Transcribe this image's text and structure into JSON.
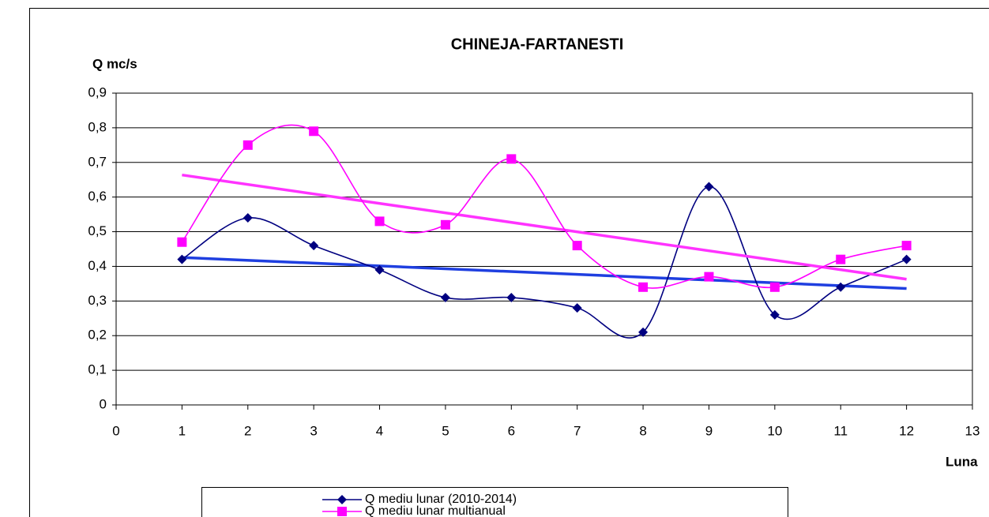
{
  "chart_data": {
    "type": "line",
    "title": "CHINEJA-FARTANESTI",
    "y_label": "Q mc/s",
    "x_label": "Luna",
    "x": [
      1,
      2,
      3,
      4,
      5,
      6,
      7,
      8,
      9,
      10,
      11,
      12
    ],
    "series": [
      {
        "name": "Q mediu lunar (2010-2014)",
        "color": "#000080",
        "trend_color": "#1f3fe0",
        "marker": "diamond",
        "values": [
          0.42,
          0.54,
          0.46,
          0.39,
          0.31,
          0.31,
          0.28,
          0.21,
          0.63,
          0.26,
          0.34,
          0.42
        ]
      },
      {
        "name": "Q mediu lunar multianual",
        "color": "#ff00ff",
        "trend_color": "#ff33ff",
        "marker": "square",
        "values": [
          0.47,
          0.75,
          0.79,
          0.53,
          0.52,
          0.71,
          0.46,
          0.34,
          0.37,
          0.34,
          0.42,
          0.46
        ]
      }
    ],
    "smooth": true,
    "trendline": true,
    "xlim": [
      0,
      13
    ],
    "xticks": [
      0,
      1,
      2,
      3,
      4,
      5,
      6,
      7,
      8,
      9,
      10,
      11,
      12,
      13
    ],
    "ylim": [
      0,
      0.9
    ],
    "yticks": [
      0,
      {
        "value": 0.1,
        "label": "0,1"
      },
      {
        "value": 0.2,
        "label": "0,2"
      },
      {
        "value": 0.3,
        "label": "0,3"
      },
      {
        "value": 0.4,
        "label": "0,4"
      },
      {
        "value": 0.5,
        "label": "0,5"
      },
      {
        "value": 0.6,
        "label": "0,6"
      },
      {
        "value": 0.7,
        "label": "0,7"
      },
      {
        "value": 0.8,
        "label": "0,8"
      },
      {
        "value": 0.9,
        "label": "0,9"
      }
    ],
    "grid": true,
    "legend": "bottom"
  }
}
